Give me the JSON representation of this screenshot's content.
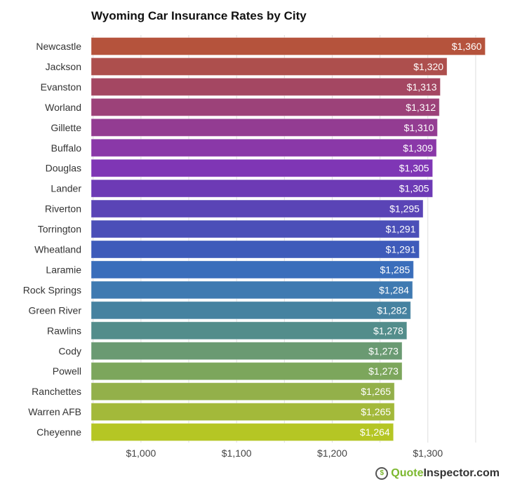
{
  "chart_data": {
    "type": "bar",
    "orientation": "horizontal",
    "title": "Wyoming Car Insurance Rates by City",
    "categories": [
      "Newcastle",
      "Jackson",
      "Evanston",
      "Worland",
      "Gillette",
      "Buffalo",
      "Douglas",
      "Lander",
      "Riverton",
      "Torrington",
      "Wheatland",
      "Laramie",
      "Rock Springs",
      "Green River",
      "Rawlins",
      "Cody",
      "Powell",
      "Ranchettes",
      "Warren AFB",
      "Cheyenne"
    ],
    "values": [
      1360,
      1320,
      1313,
      1312,
      1310,
      1309,
      1305,
      1305,
      1295,
      1291,
      1291,
      1285,
      1284,
      1282,
      1278,
      1273,
      1273,
      1265,
      1265,
      1264
    ],
    "value_labels": [
      "$1,360",
      "$1,320",
      "$1,313",
      "$1,312",
      "$1,310",
      "$1,309",
      "$1,305",
      "$1,305",
      "$1,295",
      "$1,291",
      "$1,291",
      "$1,285",
      "$1,284",
      "$1,282",
      "$1,278",
      "$1,273",
      "$1,273",
      "$1,265",
      "$1,265",
      "$1,264"
    ],
    "colors": [
      "#b5533c",
      "#ad4f4d",
      "#a44762",
      "#9c4279",
      "#933c92",
      "#8a38a8",
      "#7f36b5",
      "#6d3ab5",
      "#5a44b6",
      "#4b4fb8",
      "#3e5bba",
      "#3a6ebb",
      "#3f7ab1",
      "#4682a0",
      "#538d8b",
      "#6a9a72",
      "#7ca65c",
      "#93b04a",
      "#a3b93a",
      "#b5c624"
    ],
    "xlim": [
      948,
      1370
    ],
    "xticks": [
      1000,
      1100,
      1200,
      1300
    ],
    "xtick_labels": [
      "$1,000",
      "$1,100",
      "$1,200",
      "$1,300"
    ],
    "gridlines": [
      950,
      1000,
      1050,
      1100,
      1150,
      1200,
      1250,
      1300,
      1350
    ],
    "xlabel": "",
    "ylabel": ""
  },
  "brand": {
    "part1": "Quote",
    "part2": "Inspector.com",
    "icon": "dollar-magnifier-icon"
  }
}
